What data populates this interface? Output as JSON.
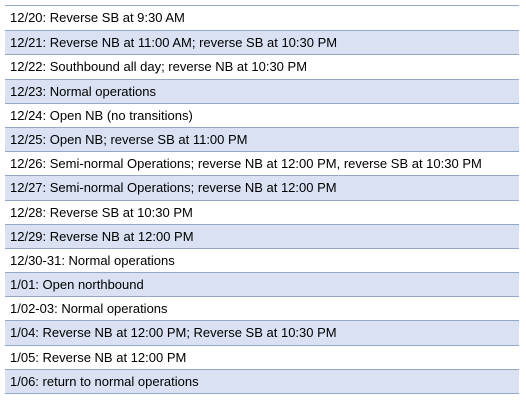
{
  "colors": {
    "shaded_row": "#d9e1f2",
    "plain_row": "#ffffff",
    "border": "#95a7c9"
  },
  "schedule": {
    "rows": [
      {
        "text": "12/20: Reverse SB at 9:30 AM",
        "shaded": false
      },
      {
        "text": "12/21: Reverse NB at 11:00 AM; reverse SB at 10:30 PM",
        "shaded": true
      },
      {
        "text": "12/22: Southbound all day; reverse NB at 10:30 PM",
        "shaded": false
      },
      {
        "text": "12/23: Normal operations",
        "shaded": true
      },
      {
        "text": "12/24: Open NB (no transitions)",
        "shaded": false
      },
      {
        "text": "12/25: Open NB; reverse SB at 11:00 PM",
        "shaded": true
      },
      {
        "text": "12/26: Semi-normal Operations; reverse NB at 12:00 PM, reverse SB at 10:30 PM",
        "shaded": false
      },
      {
        "text": "12/27: Semi-normal Operations; reverse NB at 12:00 PM",
        "shaded": true
      },
      {
        "text": "12/28: Reverse SB at 10:30 PM",
        "shaded": false
      },
      {
        "text": "12/29: Reverse NB at 12:00 PM",
        "shaded": true
      },
      {
        "text": "12/30-31: Normal operations",
        "shaded": false
      },
      {
        "text": "1/01: Open northbound",
        "shaded": true
      },
      {
        "text": "1/02-03: Normal operations",
        "shaded": false
      },
      {
        "text": "1/04: Reverse NB at 12:00 PM; Reverse SB at 10:30 PM",
        "shaded": true
      },
      {
        "text": "1/05: Reverse NB at 12:00 PM",
        "shaded": false
      },
      {
        "text": "1/06: return to normal operations",
        "shaded": true
      }
    ]
  }
}
